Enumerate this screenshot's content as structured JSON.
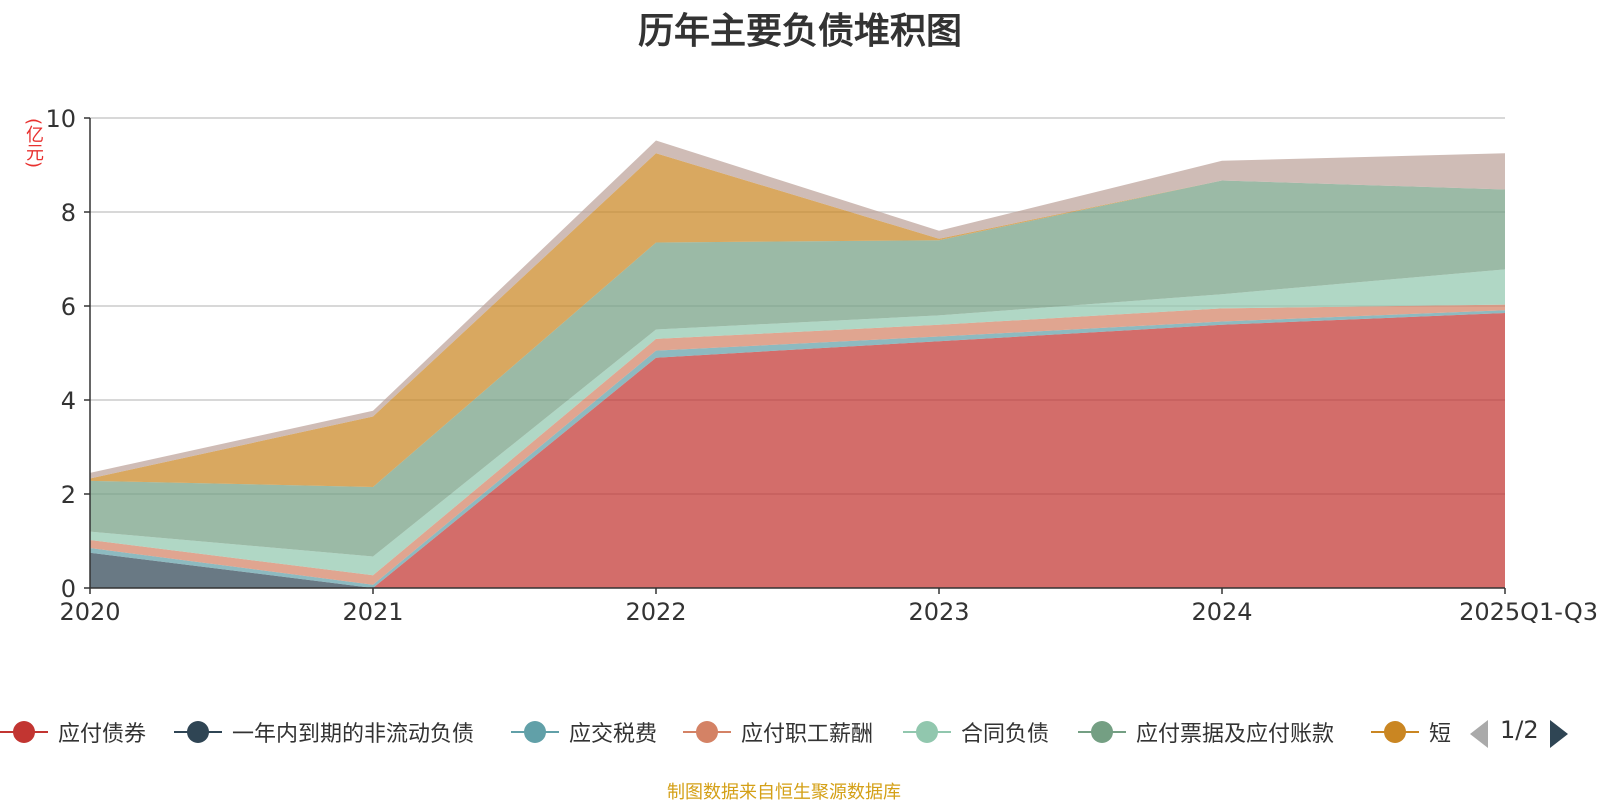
{
  "title": "历年主要负债堆积图",
  "y_unit": "(亿元)",
  "source_note": "制图数据来自恒生聚源数据库",
  "legend_pager": {
    "text": "1/2"
  },
  "legend": [
    {
      "name": "应付债券",
      "color": "#c23531"
    },
    {
      "name": "一年内到期的非流动负债",
      "color": "#2f4554"
    },
    {
      "name": "应交税费",
      "color": "#61a0a8"
    },
    {
      "name": "应付职工薪酬",
      "color": "#d48265"
    },
    {
      "name": "合同负债",
      "color": "#91c7ae"
    },
    {
      "name": "应付票据及应付账款",
      "color": "#749f83"
    },
    {
      "name": "短",
      "color": "#ca8622"
    }
  ],
  "chart_data": {
    "type": "area",
    "stacked": true,
    "categories": [
      "2020",
      "2021",
      "2022",
      "2023",
      "2024",
      "2025Q1-Q3"
    ],
    "ylim": [
      0,
      10
    ],
    "yticks": [
      0,
      2,
      4,
      6,
      8,
      10
    ],
    "grid": true,
    "series": [
      {
        "name": "应付债券",
        "color": "#c23531",
        "values": [
          0,
          0,
          4.9,
          5.25,
          5.6,
          5.85
        ]
      },
      {
        "name": "一年内到期的非流动负债",
        "color": "#2f4554",
        "values": [
          0.75,
          0,
          0,
          0,
          0,
          0
        ]
      },
      {
        "name": "应交税费",
        "color": "#61a0a8",
        "values": [
          0.1,
          0.07,
          0.15,
          0.1,
          0.07,
          0.06
        ]
      },
      {
        "name": "应付职工薪酬",
        "color": "#d48265",
        "values": [
          0.17,
          0.2,
          0.25,
          0.25,
          0.28,
          0.12
        ]
      },
      {
        "name": "合同负债",
        "color": "#91c7ae",
        "values": [
          0.18,
          0.4,
          0.2,
          0.2,
          0.3,
          0.75
        ]
      },
      {
        "name": "应付票据及应付账款",
        "color": "#749f83",
        "values": [
          1.08,
          1.48,
          1.85,
          1.6,
          2.42,
          1.7
        ]
      },
      {
        "name": "短",
        "color": "#ca8622",
        "values": [
          0.05,
          1.5,
          1.9,
          0.03,
          0,
          0
        ]
      },
      {
        "name": "",
        "color": "#bda29a",
        "values": [
          0.12,
          0.12,
          0.27,
          0.17,
          0.42,
          0.77
        ]
      }
    ]
  }
}
